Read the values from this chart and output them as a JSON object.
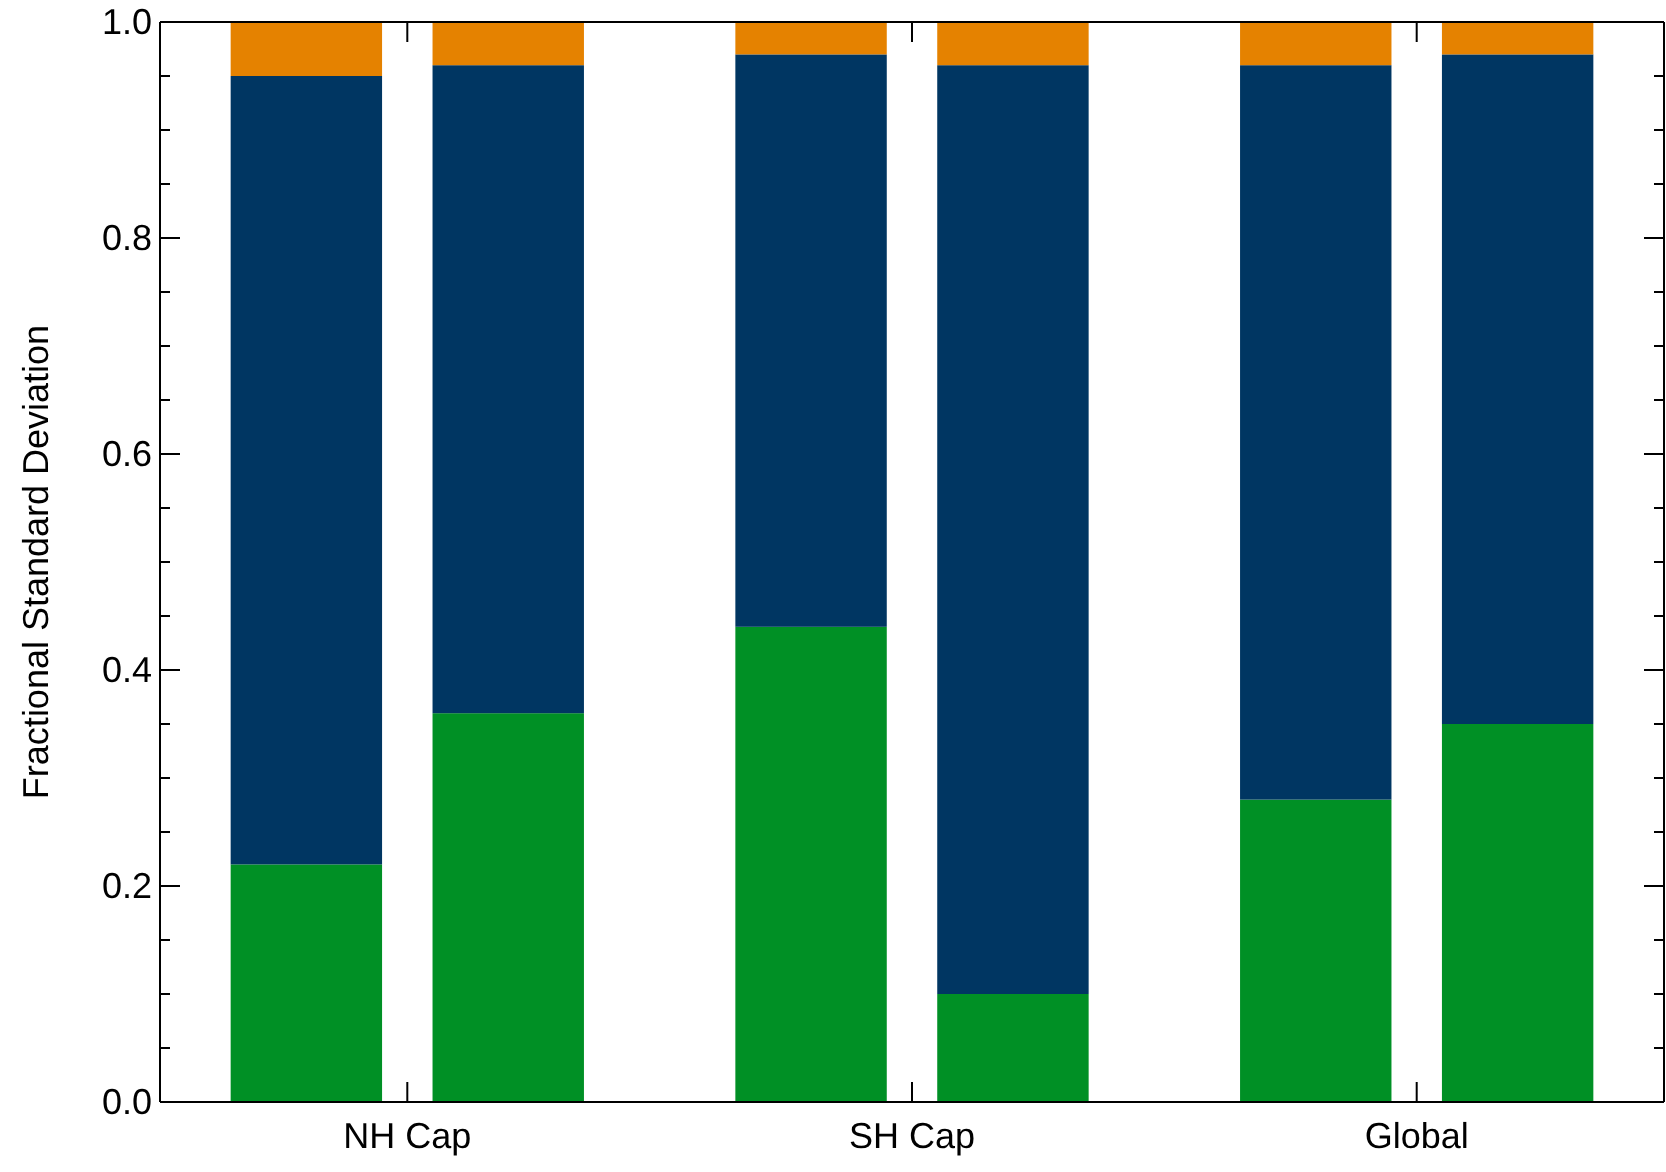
{
  "chart_data": {
    "type": "bar",
    "stacked": true,
    "ylabel": "Fractional Standard Deviation",
    "categories": [
      null,
      "NH Cap",
      null,
      null,
      null,
      null,
      "SH Cap",
      null,
      null,
      null,
      null,
      "Global",
      null
    ],
    "ylim": [
      0,
      1
    ],
    "yticks": [
      {
        "value": 0,
        "label": "0.0"
      },
      {
        "value": 0.05,
        "label": null
      },
      {
        "value": 0.1,
        "label": null
      },
      {
        "value": 0.15,
        "label": null
      },
      {
        "value": 0.2,
        "label": "0.2"
      },
      {
        "value": 0.25,
        "label": null
      },
      {
        "value": 0.3,
        "label": null
      },
      {
        "value": 0.35,
        "label": null
      },
      {
        "value": 0.4,
        "label": "0.4"
      },
      {
        "value": 0.45,
        "label": null
      },
      {
        "value": 0.5,
        "label": null
      },
      {
        "value": 0.55,
        "label": null
      },
      {
        "value": 0.6,
        "label": "0.6"
      },
      {
        "value": 0.65,
        "label": null
      },
      {
        "value": 0.7,
        "label": null
      },
      {
        "value": 0.75,
        "label": null
      },
      {
        "value": 0.8,
        "label": "0.8"
      },
      {
        "value": 0.85,
        "label": null
      },
      {
        "value": 0.9,
        "label": null
      },
      {
        "value": 0.95,
        "label": null
      },
      {
        "value": 1,
        "label": "1.0"
      }
    ],
    "grid": false,
    "series": [
      {
        "color": "#009025",
        "values": [
          0.22,
          null,
          0.36,
          null,
          null,
          0.44,
          null,
          0.1,
          null,
          null,
          0.28,
          null,
          0.35
        ]
      },
      {
        "color": "#003662",
        "values": [
          0.73,
          null,
          0.6,
          null,
          null,
          0.53,
          null,
          0.86,
          null,
          null,
          0.68,
          null,
          0.62
        ]
      },
      {
        "color": "#e58200",
        "values": [
          0.05,
          null,
          0.04,
          null,
          null,
          0.03,
          null,
          0.04,
          null,
          null,
          0.04,
          null,
          0.03
        ]
      }
    ]
  }
}
